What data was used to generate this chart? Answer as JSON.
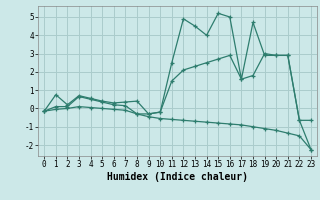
{
  "xlabel": "Humidex (Indice chaleur)",
  "background_color": "#cce8e8",
  "grid_color": "#aacccc",
  "line_color": "#2e7d6e",
  "ylim": [
    -2.6,
    5.6
  ],
  "xlim": [
    -0.5,
    23.5
  ],
  "yticks": [
    -2,
    -1,
    0,
    1,
    2,
    3,
    4,
    5
  ],
  "xticks": [
    0,
    1,
    2,
    3,
    4,
    5,
    6,
    7,
    8,
    9,
    10,
    11,
    12,
    13,
    14,
    15,
    16,
    17,
    18,
    19,
    20,
    21,
    22,
    23
  ],
  "line1_x": [
    0,
    1,
    2,
    3,
    4,
    5,
    6,
    7,
    8,
    9,
    10,
    11,
    12,
    13,
    14,
    15,
    16,
    17,
    18,
    19,
    20,
    21,
    22,
    23
  ],
  "line1_y": [
    -0.15,
    0.75,
    0.2,
    0.7,
    0.55,
    0.4,
    0.3,
    0.35,
    0.4,
    -0.3,
    -0.2,
    2.5,
    4.9,
    4.5,
    4.0,
    5.2,
    5.0,
    1.6,
    4.7,
    2.9,
    2.9,
    2.9,
    -0.65,
    -0.65
  ],
  "line2_x": [
    0,
    1,
    2,
    3,
    4,
    5,
    6,
    7,
    8,
    9,
    10,
    11,
    12,
    13,
    14,
    15,
    16,
    17,
    18,
    19,
    20,
    21,
    22,
    23
  ],
  "line2_y": [
    -0.15,
    0.1,
    0.1,
    0.65,
    0.5,
    0.35,
    0.2,
    0.15,
    -0.3,
    -0.3,
    -0.2,
    1.5,
    2.1,
    2.3,
    2.5,
    2.7,
    2.9,
    1.6,
    1.8,
    3.0,
    2.9,
    2.9,
    -0.65,
    -2.25
  ],
  "line3_x": [
    0,
    1,
    2,
    3,
    4,
    5,
    6,
    7,
    8,
    9,
    10,
    11,
    12,
    13,
    14,
    15,
    16,
    17,
    18,
    19,
    20,
    21,
    22,
    23
  ],
  "line3_y": [
    -0.15,
    -0.05,
    0.0,
    0.1,
    0.05,
    0.0,
    -0.05,
    -0.1,
    -0.3,
    -0.45,
    -0.55,
    -0.6,
    -0.65,
    -0.7,
    -0.75,
    -0.8,
    -0.85,
    -0.9,
    -1.0,
    -1.1,
    -1.2,
    -1.35,
    -1.5,
    -2.25
  ]
}
